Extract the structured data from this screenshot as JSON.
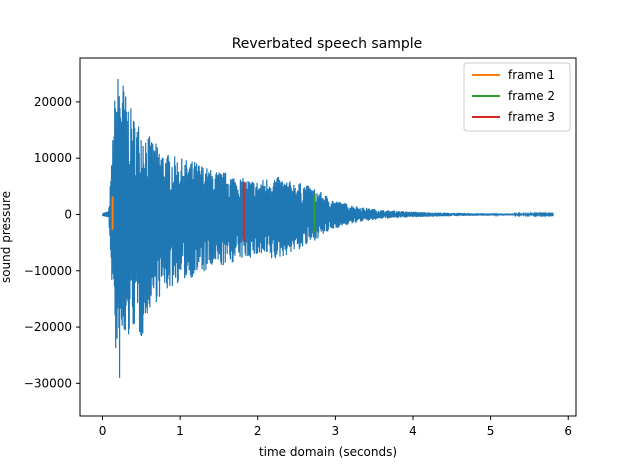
{
  "chart_data": {
    "type": "line",
    "title": "Reverbated speech sample",
    "xlabel": "time domain (seconds)",
    "ylabel": "sound pressure",
    "xlim": [
      -0.29,
      6.1
    ],
    "ylim": [
      -35800,
      27800
    ],
    "xticks": [
      0,
      1,
      2,
      3,
      4,
      5,
      6
    ],
    "yticks": [
      -30000,
      -20000,
      -10000,
      0,
      10000,
      20000
    ],
    "grid": false,
    "legend_position": "top-right",
    "duration_seconds": 5.81,
    "series": [
      {
        "name": "",
        "color": "#1f77b4",
        "envelope": {
          "x": [
            0,
            0.08,
            0.12,
            0.15,
            0.2,
            0.25,
            0.3,
            0.4,
            0.5,
            0.6,
            0.8,
            1.0,
            1.2,
            1.4,
            1.6,
            1.8,
            2.0,
            2.2,
            2.4,
            2.6,
            2.75,
            3.0,
            3.3,
            3.6,
            4.0,
            4.5,
            5.0,
            5.5,
            5.81
          ],
          "max": [
            300,
            600,
            10000,
            20000,
            25200,
            25000,
            21500,
            17500,
            16000,
            14000,
            11000,
            10000,
            9500,
            8000,
            7500,
            6500,
            6000,
            7000,
            6000,
            5500,
            4500,
            2500,
            1400,
            800,
            500,
            300,
            200,
            150,
            100
          ],
          "min": [
            -300,
            -600,
            -12000,
            -20000,
            -32800,
            -26000,
            -24000,
            -20000,
            -22500,
            -17000,
            -14000,
            -12000,
            -11000,
            -10000,
            -9000,
            -8000,
            -7500,
            -8500,
            -7000,
            -6000,
            -4500,
            -2500,
            -1400,
            -800,
            -500,
            -300,
            -200,
            -150,
            -100
          ]
        }
      },
      {
        "name": "frame 1",
        "color": "#ff7f0e",
        "x": 0.13,
        "min": -2700,
        "max": 3200
      },
      {
        "name": "frame 2",
        "color": "#2ca02c",
        "x": 2.73,
        "min": -3200,
        "max": 3700
      },
      {
        "name": "frame 3",
        "color": "#d62728",
        "x": 1.82,
        "min": -4800,
        "max": 5800
      }
    ]
  }
}
